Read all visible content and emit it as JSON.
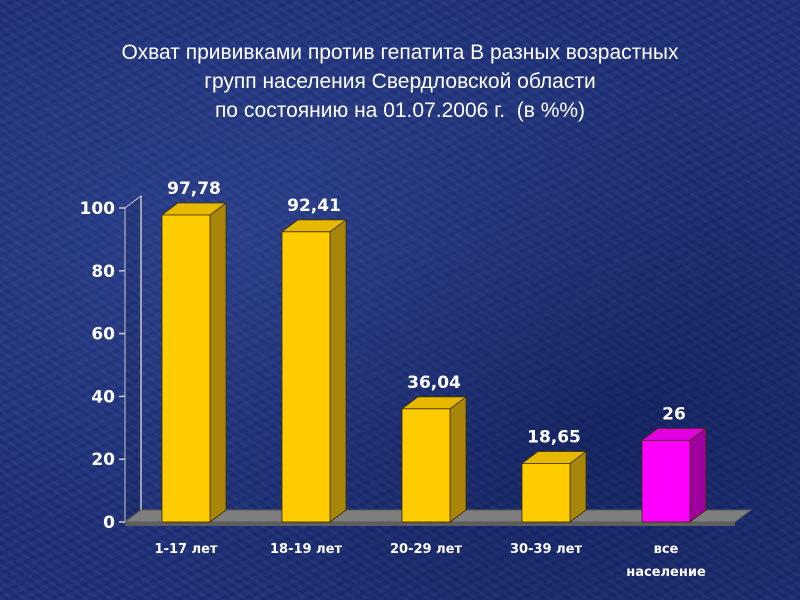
{
  "title_lines": [
    "Охват прививками против гепатита В разных возрастных",
    "групп населения Свердловской области",
    "по состоянию на 01.07.2006 г.  (в %%)"
  ],
  "chart_data": {
    "type": "bar",
    "title": "Охват прививками против гепатита В разных возрастных групп населения Свердловской области по состоянию на 01.07.2006 г.  (в %%)",
    "categories": [
      "1-17 лет",
      "18-19 лет",
      "20-29 лет",
      "30-39 лет",
      "все население"
    ],
    "category_lines": [
      [
        "1-17 лет"
      ],
      [
        "18-19 лет"
      ],
      [
        "20-29 лет"
      ],
      [
        "30-39 лет"
      ],
      [
        "все",
        "население"
      ]
    ],
    "values": [
      97.78,
      92.41,
      36.04,
      18.65,
      26
    ],
    "value_labels": [
      "97,78",
      "92,41",
      "36,04",
      "18,65",
      "26"
    ],
    "yticks": [
      0,
      20,
      40,
      60,
      80,
      100
    ],
    "ylim": [
      0,
      100
    ],
    "grid": false,
    "colors": {
      "bar": "#ffcc00",
      "bar_side": "#a8860a",
      "bar_top": "#e6b800",
      "highlight": "#ff00ff",
      "highlight_side": "#a000a0",
      "highlight_top": "#e000e0",
      "floor": "#7e7e7e",
      "axis": "#c8c8c8"
    },
    "highlight_index": 4
  }
}
